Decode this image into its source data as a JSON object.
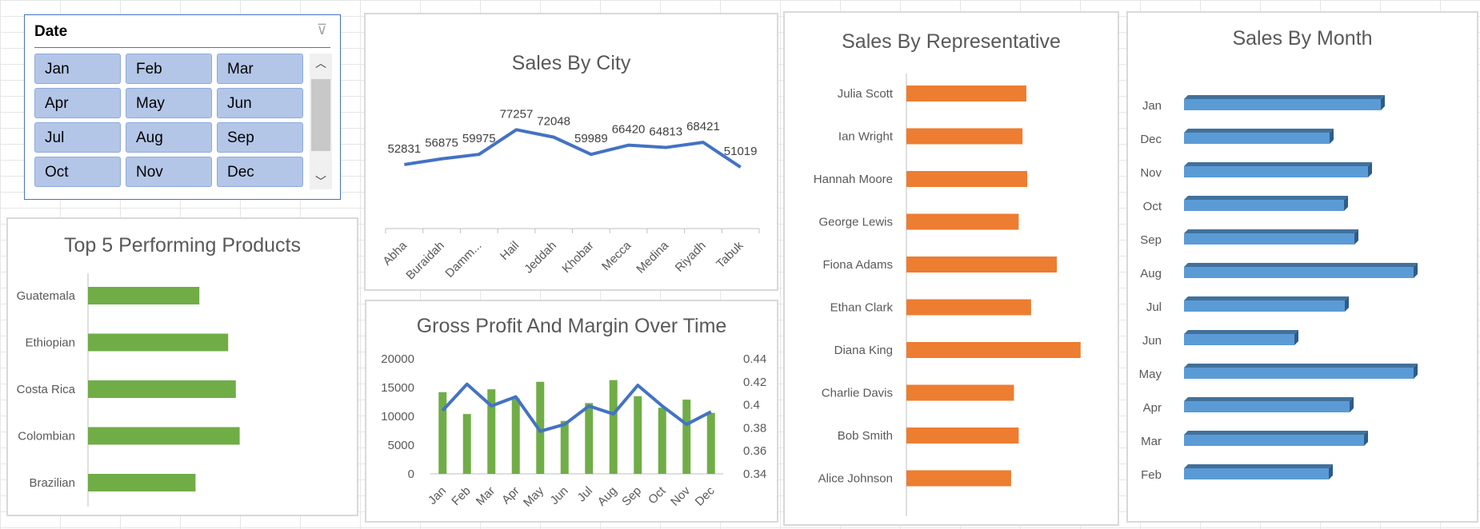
{
  "colors": {
    "city_line": "#4472c4",
    "green": "#70ad47",
    "orange": "#ed7d31",
    "blue": "#5b9bd5",
    "blue_dark": "#41719c",
    "axis": "#bfbfbf"
  },
  "slicer": {
    "title": "Date",
    "filter_icon": "clear-filter-icon",
    "items": [
      "Jan",
      "Feb",
      "Mar",
      "Apr",
      "May",
      "Jun",
      "Jul",
      "Aug",
      "Sep",
      "Oct",
      "Nov",
      "Dec"
    ],
    "scroll_up_icon": "chevron-up-icon",
    "scroll_down_icon": "chevron-down-icon"
  },
  "chart_data": [
    {
      "id": "city",
      "type": "line",
      "title": "Sales By City",
      "categories": [
        "Abha",
        "Buraidah",
        "Damm...",
        "Hail",
        "Jeddah",
        "Khobar",
        "Mecca",
        "Medina",
        "Riyadh",
        "Tabuk"
      ],
      "values": [
        52831,
        56875,
        59975,
        77257,
        72048,
        59989,
        66420,
        64813,
        68421,
        51019
      ],
      "data_labels": [
        "52831",
        "56875",
        "59975",
        "77257",
        "72048",
        "59989",
        "66420",
        "64813",
        "68421",
        "51019"
      ]
    },
    {
      "id": "products",
      "type": "bar",
      "orientation": "horizontal",
      "title": "Top 5 Performing Products",
      "categories": [
        "Guatemala",
        "Ethiopian",
        "Costa Rica",
        "Colombian",
        "Brazilian"
      ],
      "values": [
        58,
        73,
        77,
        79,
        56
      ]
    },
    {
      "id": "profit",
      "type": "bar",
      "title": "Gross Profit And Margin Over Time",
      "categories": [
        "Jan",
        "Feb",
        "Mar",
        "Apr",
        "May",
        "Jun",
        "Jul",
        "Aug",
        "Sep",
        "Oct",
        "Nov",
        "Dec"
      ],
      "series": [
        {
          "type": "bar",
          "axis": "left",
          "values": [
            14200,
            10400,
            14700,
            13100,
            16000,
            9200,
            12300,
            16300,
            13500,
            11500,
            12900,
            10600
          ]
        },
        {
          "type": "line",
          "axis": "right",
          "values": [
            0.395,
            0.418,
            0.399,
            0.407,
            0.377,
            0.383,
            0.399,
            0.392,
            0.417,
            0.399,
            0.383,
            0.394
          ]
        }
      ],
      "yticks_left": [
        "20000",
        "15000",
        "10000",
        "5000",
        "0"
      ],
      "ylim_left": [
        0,
        20000
      ],
      "yticks_right": [
        "0.44",
        "0.42",
        "0.4",
        "0.38",
        "0.36",
        "0.34"
      ],
      "ylim_right": [
        0.34,
        0.44
      ]
    },
    {
      "id": "rep",
      "type": "bar",
      "orientation": "horizontal",
      "title": "Sales By Representative",
      "categories": [
        "Julia Scott",
        "Ian Wright",
        "Hannah Moore",
        "George Lewis",
        "Fiona Adams",
        "Ethan Clark",
        "Diana King",
        "Charlie Davis",
        "Bob Smith",
        "Alice Johnson"
      ],
      "values": [
        126,
        122,
        127,
        118,
        158,
        131,
        183,
        113,
        118,
        110
      ]
    },
    {
      "id": "month",
      "type": "bar",
      "orientation": "horizontal",
      "style": "3d",
      "title": "Sales By Month",
      "categories": [
        "Jan",
        "Dec",
        "Nov",
        "Oct",
        "Sep",
        "Aug",
        "Jul",
        "Jun",
        "May",
        "Apr",
        "Mar",
        "Feb"
      ],
      "values": [
        246,
        182,
        230,
        200,
        213,
        287,
        201,
        138,
        287,
        207,
        225,
        181
      ]
    }
  ]
}
